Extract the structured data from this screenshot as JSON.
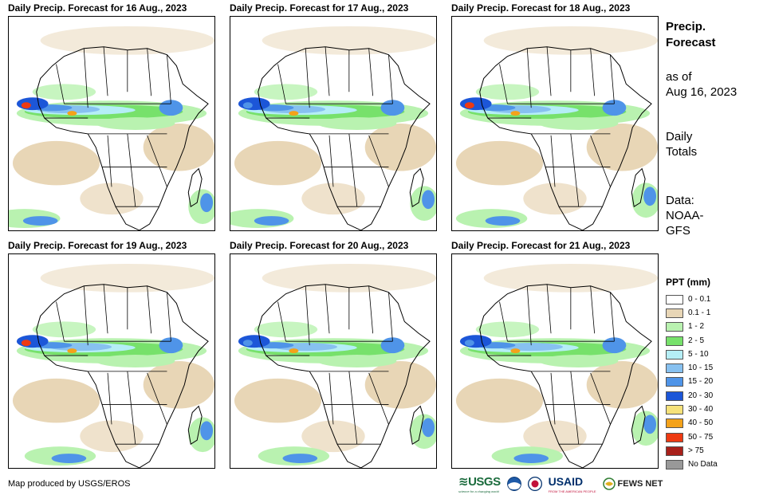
{
  "panels": [
    {
      "title": "Daily Precip. Forecast for 16 Aug., 2023"
    },
    {
      "title": "Daily Precip. Forecast for 17 Aug., 2023"
    },
    {
      "title": "Daily Precip. Forecast for 18 Aug., 2023"
    },
    {
      "title": "Daily Precip. Forecast for 19 Aug., 2023"
    },
    {
      "title": "Daily Precip. Forecast for 20 Aug., 2023"
    },
    {
      "title": "Daily Precip. Forecast for 21 Aug., 2023"
    }
  ],
  "sidebar": {
    "title_line1": "Precip.",
    "title_line2": "Forecast",
    "asof_line1": "as of",
    "asof_line2": "Aug 16, 2023",
    "totals_line1": "Daily",
    "totals_line2": "Totals",
    "data_line1": "Data:",
    "data_line2": "NOAA-",
    "data_line3": "GFS"
  },
  "legend": {
    "title": "PPT (mm)",
    "items": [
      {
        "label": "0 - 0.1",
        "color": "#ffffff"
      },
      {
        "label": "0.1 - 1",
        "color": "#e8d6b6"
      },
      {
        "label": "1 - 2",
        "color": "#b9f2b0"
      },
      {
        "label": "2 - 5",
        "color": "#77e16b"
      },
      {
        "label": "5 - 10",
        "color": "#b5eef6"
      },
      {
        "label": "10 - 15",
        "color": "#87c1f0"
      },
      {
        "label": "15 - 20",
        "color": "#4f94e8"
      },
      {
        "label": "20 - 30",
        "color": "#1c56d8"
      },
      {
        "label": "30 - 40",
        "color": "#f6e27a"
      },
      {
        "label": "40 - 50",
        "color": "#f4a21a"
      },
      {
        "label": "50 - 75",
        "color": "#ee3a12"
      },
      {
        "label": "> 75",
        "color": "#a8201a"
      },
      {
        "label": "No Data",
        "color": "#999999"
      }
    ]
  },
  "footer": {
    "credit": "Map produced by USGS/EROS",
    "logo_usgs": "≋USGS",
    "logo_usgs_sub": "science for a changing world",
    "logo_usaid": "USAID",
    "logo_usaid_sub": "FROM THE AMERICAN PEOPLE",
    "logo_fews": "FEWS NET"
  }
}
